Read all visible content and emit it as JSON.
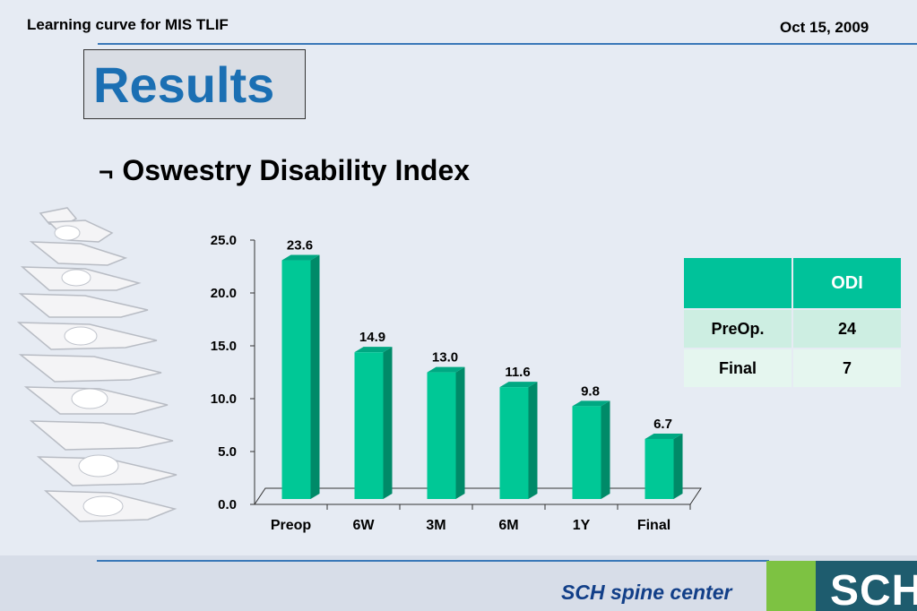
{
  "header": {
    "left": "Learning curve for MIS TLIF",
    "right": "Oct 15, 2009"
  },
  "title": "Results",
  "bullet": {
    "mark": "¬",
    "text": "Oswestry Disability Index"
  },
  "chart_data": {
    "type": "bar",
    "categories": [
      "Preop",
      "6W",
      "3M",
      "6M",
      "1Y",
      "Final"
    ],
    "values": [
      23.6,
      14.9,
      13.0,
      11.6,
      9.8,
      6.7
    ],
    "value_labels": [
      "23.6",
      "14.9",
      "13.0",
      "11.6",
      "9.8",
      "6.7"
    ],
    "yticks": [
      "0.0",
      "5.0",
      "10.0",
      "15.0",
      "20.0",
      "25.0"
    ],
    "ylim": [
      0,
      25
    ],
    "title": "",
    "xlabel": "",
    "ylabel": "",
    "bar_color": "#00c896",
    "bar_side_color": "#008a68",
    "grid": false
  },
  "table": {
    "header": [
      "",
      "ODI"
    ],
    "rows": [
      [
        "PreOp.",
        "24"
      ],
      [
        "Final",
        "7"
      ]
    ]
  },
  "footer": {
    "text": "SCH spine center",
    "logo": "SCH"
  },
  "colors": {
    "accent_blue": "#1b6fb3",
    "teal": "#00c29a",
    "footer_text": "#123f88"
  }
}
